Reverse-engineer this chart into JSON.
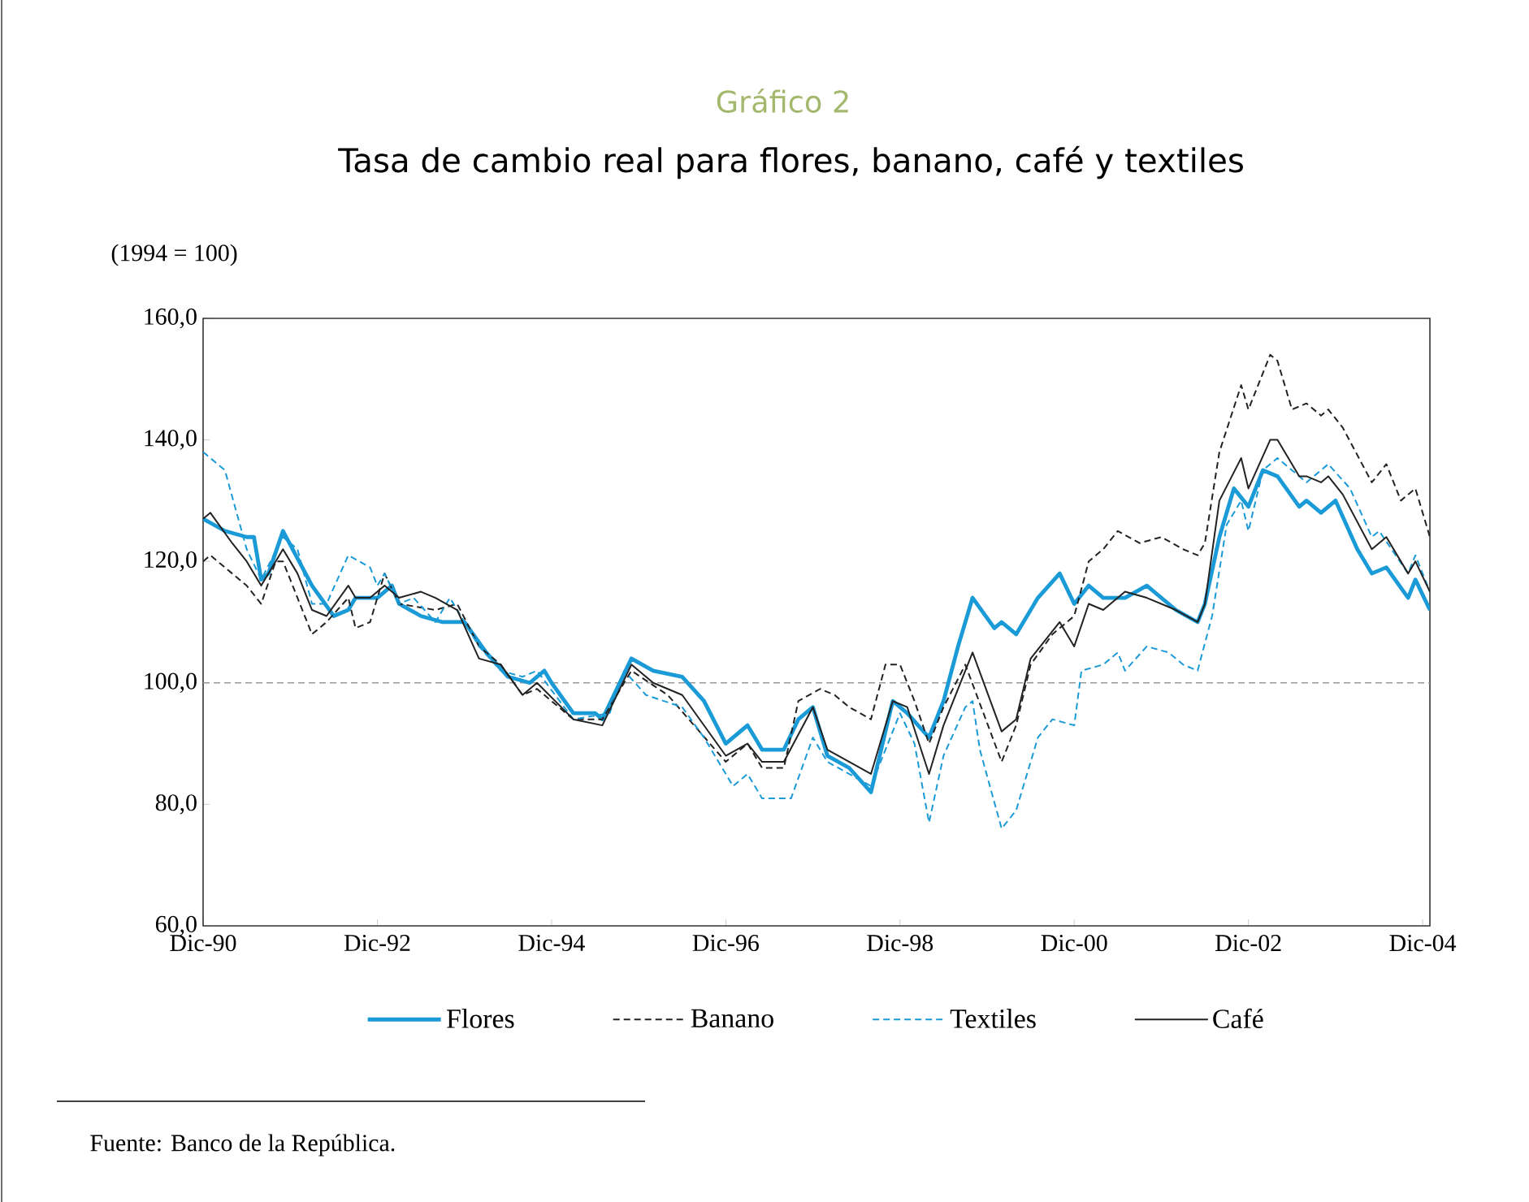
{
  "chart_data": {
    "type": "line",
    "title": "Gráfico 2",
    "subtitle": "Tasa de cambio real para flores, banano, café y textiles",
    "annotations": [
      "(1994 = 100)",
      "Fuente: Banco de la República."
    ],
    "xlim": [
      "1990-12",
      "2005-01"
    ],
    "xticks": [
      {
        "value": "1990-12",
        "label": "Dic-90"
      },
      {
        "value": "1992-12",
        "label": "Dic-92"
      },
      {
        "value": "1994-12",
        "label": "Dic-94"
      },
      {
        "value": "1996-12",
        "label": "Dic-96"
      },
      {
        "value": "1998-12",
        "label": "Dic-98"
      },
      {
        "value": "2000-12",
        "label": "Dic-00"
      },
      {
        "value": "2002-12",
        "label": "Dic-02"
      },
      {
        "value": "2004-12",
        "label": "Dic-04"
      }
    ],
    "ylim": [
      60,
      160
    ],
    "yticks": [
      {
        "value": 60,
        "label": "60,0"
      },
      {
        "value": 80,
        "label": "80,0"
      },
      {
        "value": 100,
        "label": "100,0"
      },
      {
        "value": 120,
        "label": "120,0"
      },
      {
        "value": 140,
        "label": "140,0"
      },
      {
        "value": 160,
        "label": "160,0"
      }
    ],
    "legend": "bottom",
    "marker": "none",
    "ref_lines": [
      {
        "axis": "y",
        "value": 100,
        "color": "#999999",
        "line_style": "dashed"
      }
    ],
    "series": [
      {
        "name": "Flores",
        "color": "#1a9ad6",
        "line_style": "solid",
        "x": [
          "1990-12",
          "1991-03",
          "1991-06",
          "1991-07",
          "1991-08",
          "1991-09",
          "1991-11",
          "1992-03",
          "1992-06",
          "1992-08",
          "1992-09",
          "1992-12",
          "1993-02",
          "1993-03",
          "1993-06",
          "1993-09",
          "1993-12",
          "1994-03",
          "1994-06",
          "1994-09",
          "1994-11",
          "1994-12",
          "1995-03",
          "1995-06",
          "1995-07",
          "1995-11",
          "1996-02",
          "1996-06",
          "1996-09",
          "1996-12",
          "1997-03",
          "1997-05",
          "1997-08",
          "1997-10",
          "1997-12",
          "1998-02",
          "1998-05",
          "1998-08",
          "1998-11",
          "1999-01",
          "1999-04",
          "1999-06",
          "1999-08",
          "1999-10",
          "2000-01",
          "2000-02",
          "2000-04",
          "2000-07",
          "2000-10",
          "2000-12",
          "2001-02",
          "2001-04",
          "2001-07",
          "2001-10",
          "2002-02",
          "2002-05",
          "2002-06",
          "2002-08",
          "2002-10",
          "2002-12",
          "2003-02",
          "2003-04",
          "2003-07",
          "2003-08",
          "2003-10",
          "2003-12",
          "2004-03",
          "2004-05",
          "2004-07",
          "2004-10",
          "2004-11",
          "2005-01"
        ],
        "values": [
          127,
          125,
          124,
          124,
          117,
          118,
          125,
          116,
          111,
          112,
          114,
          114,
          116,
          113,
          111,
          110,
          110,
          105,
          101,
          100,
          102,
          100,
          95,
          95,
          94,
          104,
          102,
          101,
          97,
          90,
          93,
          89,
          89,
          94,
          96,
          88,
          86,
          82,
          97,
          95,
          91,
          97,
          106,
          114,
          109,
          110,
          108,
          114,
          118,
          113,
          116,
          114,
          114,
          116,
          112,
          110,
          113,
          124,
          132,
          129,
          135,
          134,
          129,
          130,
          128,
          130,
          122,
          118,
          119,
          114,
          117,
          112
        ]
      },
      {
        "name": "Banano",
        "color": "#222222",
        "line_style": "dashed",
        "x": [
          "1990-12",
          "1991-01",
          "1991-06",
          "1991-08",
          "1991-10",
          "1991-11",
          "1992-01",
          "1992-03",
          "1992-05",
          "1992-08",
          "1992-09",
          "1992-11",
          "1993-01",
          "1993-03",
          "1993-08",
          "1993-11",
          "1994-02",
          "1994-05",
          "1994-08",
          "1994-10",
          "1995-03",
          "1995-07",
          "1995-11",
          "1996-04",
          "1996-12",
          "1997-03",
          "1997-05",
          "1997-08",
          "1997-10",
          "1998-01",
          "1998-03",
          "1998-05",
          "1998-08",
          "1998-10",
          "1998-12",
          "1999-02",
          "1999-04",
          "1999-06",
          "1999-09",
          "2000-02",
          "2000-04",
          "2000-06",
          "2000-09",
          "2000-12",
          "2001-02",
          "2001-04",
          "2001-06",
          "2001-09",
          "2001-12",
          "2002-03",
          "2002-05",
          "2002-06",
          "2002-08",
          "2002-11",
          "2002-12",
          "2003-03",
          "2003-04",
          "2003-06",
          "2003-08",
          "2003-10",
          "2003-11",
          "2004-01",
          "2004-05",
          "2004-07",
          "2004-09",
          "2004-11",
          "2005-01"
        ],
        "values": [
          120,
          121,
          116,
          113,
          120,
          120,
          114,
          108,
          110,
          114,
          109,
          110,
          118,
          113,
          112,
          113,
          106,
          103,
          98,
          99,
          94,
          94,
          102,
          98,
          87,
          90,
          86,
          86,
          97,
          99,
          98,
          96,
          94,
          103,
          103,
          97,
          90,
          96,
          103,
          87,
          93,
          103,
          108,
          111,
          120,
          122,
          125,
          123,
          124,
          122,
          121,
          123,
          138,
          149,
          145,
          154,
          153,
          145,
          146,
          144,
          145,
          142,
          133,
          136,
          130,
          132,
          124
        ]
      },
      {
        "name": "Textiles",
        "color": "#1a9ad6",
        "line_style": "dashed",
        "x": [
          "1990-12",
          "1991-03",
          "1991-06",
          "1991-08",
          "1991-11",
          "1992-01",
          "1992-03",
          "1992-05",
          "1992-08",
          "1992-11",
          "1992-12",
          "1993-01",
          "1993-03",
          "1993-05",
          "1993-08",
          "1993-10",
          "1994-02",
          "1994-05",
          "1994-08",
          "1994-10",
          "1995-03",
          "1995-08",
          "1995-10",
          "1996-01",
          "1996-06",
          "1996-09",
          "1997-01",
          "1997-03",
          "1997-05",
          "1997-09",
          "1997-12",
          "1998-02",
          "1998-08",
          "1998-12",
          "1999-02",
          "1999-04",
          "1999-06",
          "1999-09",
          "1999-10",
          "1999-11",
          "2000-02",
          "2000-04",
          "2000-07",
          "2000-09",
          "2000-12",
          "2001-01",
          "2001-04",
          "2001-06",
          "2001-07",
          "2001-10",
          "2002-01",
          "2002-03",
          "2002-05",
          "2002-07",
          "2002-09",
          "2002-11",
          "2002-12",
          "2003-02",
          "2003-04",
          "2003-06",
          "2003-08",
          "2003-11",
          "2004-02",
          "2004-05",
          "2004-06",
          "2004-10",
          "2004-11",
          "2005-01"
        ],
        "values": [
          138,
          135,
          122,
          117,
          124,
          122,
          113,
          113,
          121,
          119,
          116,
          118,
          113,
          114,
          110,
          114,
          106,
          102,
          101,
          102,
          94,
          95,
          102,
          98,
          96,
          91,
          83,
          85,
          81,
          81,
          91,
          87,
          83,
          95,
          90,
          77,
          88,
          96,
          97,
          89,
          76,
          79,
          91,
          94,
          93,
          102,
          103,
          105,
          102,
          106,
          105,
          103,
          102,
          111,
          126,
          130,
          125,
          135,
          137,
          135,
          133,
          136,
          132,
          124,
          125,
          118,
          121,
          115
        ]
      },
      {
        "name": "Café",
        "color": "#222222",
        "line_style": "solid",
        "x": [
          "1990-12",
          "1991-01",
          "1991-04",
          "1991-06",
          "1991-08",
          "1991-11",
          "1992-01",
          "1992-03",
          "1992-05",
          "1992-08",
          "1992-09",
          "1992-11",
          "1993-01",
          "1993-03",
          "1993-06",
          "1993-08",
          "1993-11",
          "1994-02",
          "1994-05",
          "1994-08",
          "1994-10",
          "1995-03",
          "1995-07",
          "1995-11",
          "1996-02",
          "1996-06",
          "1996-12",
          "1997-03",
          "1997-05",
          "1997-08",
          "1997-12",
          "1998-02",
          "1998-08",
          "1998-11",
          "1999-01",
          "1999-04",
          "1999-06",
          "1999-10",
          "2000-02",
          "2000-04",
          "2000-06",
          "2000-10",
          "2000-12",
          "2001-02",
          "2001-04",
          "2001-06",
          "2001-07",
          "2001-10",
          "2002-02",
          "2002-05",
          "2002-06",
          "2002-08",
          "2002-11",
          "2002-12",
          "2003-03",
          "2003-04",
          "2003-07",
          "2003-08",
          "2003-10",
          "2003-11",
          "2004-01",
          "2004-05",
          "2004-07",
          "2004-10",
          "2004-11",
          "2005-01"
        ],
        "values": [
          127,
          128,
          123,
          120,
          116,
          122,
          118,
          112,
          111,
          116,
          114,
          114,
          116,
          114,
          115,
          114,
          112,
          104,
          103,
          98,
          100,
          94,
          93,
          103,
          100,
          98,
          88,
          90,
          87,
          87,
          96,
          89,
          85,
          97,
          96,
          85,
          93,
          105,
          92,
          94,
          104,
          110,
          106,
          113,
          112,
          114,
          115,
          114,
          112,
          110,
          113,
          130,
          137,
          132,
          140,
          140,
          134,
          134,
          133,
          134,
          131,
          122,
          124,
          118,
          120,
          115
        ]
      }
    ]
  }
}
